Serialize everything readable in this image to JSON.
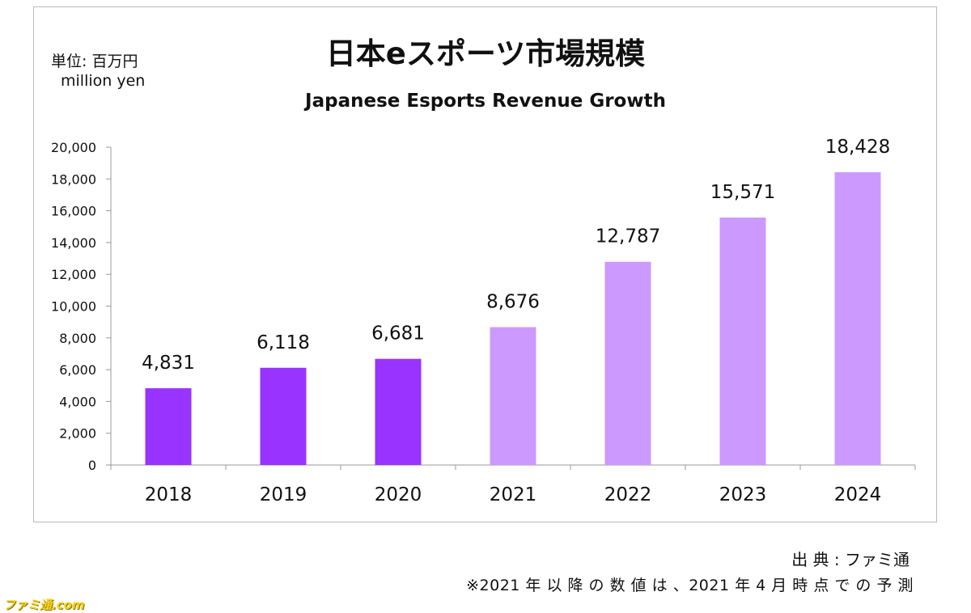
{
  "unit": {
    "ja": "単位: 百万円",
    "en": "million yen"
  },
  "source": "出 典 : ファミ通",
  "note": "※2021 年 以 降 の 数 値 は 、2021 年 4 月 時 点 で の 予 測",
  "watermark": "ファミ通.com",
  "colors": {
    "actual": "#9933ff",
    "forecast": "#cc99ff",
    "axis": "#999999"
  },
  "chart_data": {
    "type": "bar",
    "title": "日本eスポーツ市場規模",
    "subtitle": "Japanese Esports Revenue Growth",
    "xlabel": "",
    "ylabel": "",
    "categories": [
      "2018",
      "2019",
      "2020",
      "2021",
      "2022",
      "2023",
      "2024"
    ],
    "values": [
      4831,
      6118,
      6681,
      8676,
      12787,
      15571,
      18428
    ],
    "data_labels": [
      "4,831",
      "6,118",
      "6,681",
      "8,676",
      "12,787",
      "15,571",
      "18,428"
    ],
    "forecast": [
      false,
      false,
      false,
      true,
      true,
      true,
      true
    ],
    "ylim": [
      0,
      20000
    ],
    "yticks": [
      0,
      2000,
      4000,
      6000,
      8000,
      10000,
      12000,
      14000,
      16000,
      18000,
      20000
    ],
    "ytick_labels": [
      "0",
      "2,000",
      "4,000",
      "6,000",
      "8,000",
      "10,000",
      "12,000",
      "14,000",
      "16,000",
      "18,000",
      "20,000"
    ],
    "grid": false,
    "legend": "none"
  }
}
